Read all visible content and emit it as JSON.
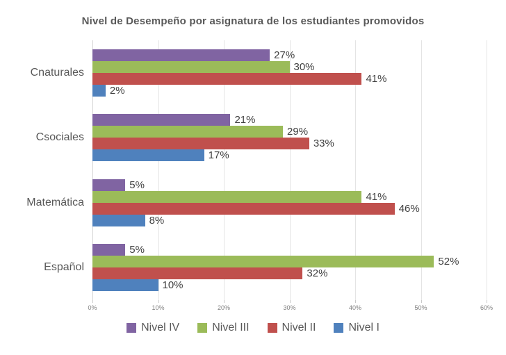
{
  "page": {
    "background": "#FFFFFF"
  },
  "chart_data": {
    "type": "bar",
    "orientation": "horizontal",
    "title": "Nivel de Desempeño por asignatura de los estudiantes promovidos",
    "categories": [
      "Cnaturales",
      "Csociales",
      "Matemática",
      "Español"
    ],
    "series": [
      {
        "name": "Nivel IV",
        "color": "#8064A2",
        "values": [
          27,
          21,
          5,
          5
        ]
      },
      {
        "name": "Nivel III",
        "color": "#9BBB59",
        "values": [
          30,
          29,
          41,
          52
        ]
      },
      {
        "name": "Nivel II",
        "color": "#C0504D",
        "values": [
          41,
          33,
          46,
          32
        ]
      },
      {
        "name": "Nivel I",
        "color": "#4F81BD",
        "values": [
          2,
          17,
          8,
          10
        ]
      }
    ],
    "data_labels": [
      "27%",
      "30%",
      "41%",
      "2%",
      "21%",
      "29%",
      "33%",
      "17%",
      "5%",
      "41%",
      "46%",
      "8%",
      "5%",
      "52%",
      "32%",
      "10%"
    ],
    "value_suffix": "%",
    "xlabel": "",
    "ylabel": "",
    "xlim": [
      0,
      60
    ],
    "x_ticks": [
      "0%",
      "10%",
      "20%",
      "30%",
      "40%",
      "50%",
      "60%"
    ],
    "grid": "vertical",
    "legend_position": "bottom"
  },
  "styles": {
    "title_color": "#595959",
    "category_label_color": "#595959",
    "value_label_color": "#404040",
    "tick_label_color": "#808080",
    "gridline_color": "#E4E4E4",
    "axis_line_color": "#D4D4D4",
    "tick_mark_color": "#C9C9C9",
    "legend_text_color": "#595959"
  }
}
